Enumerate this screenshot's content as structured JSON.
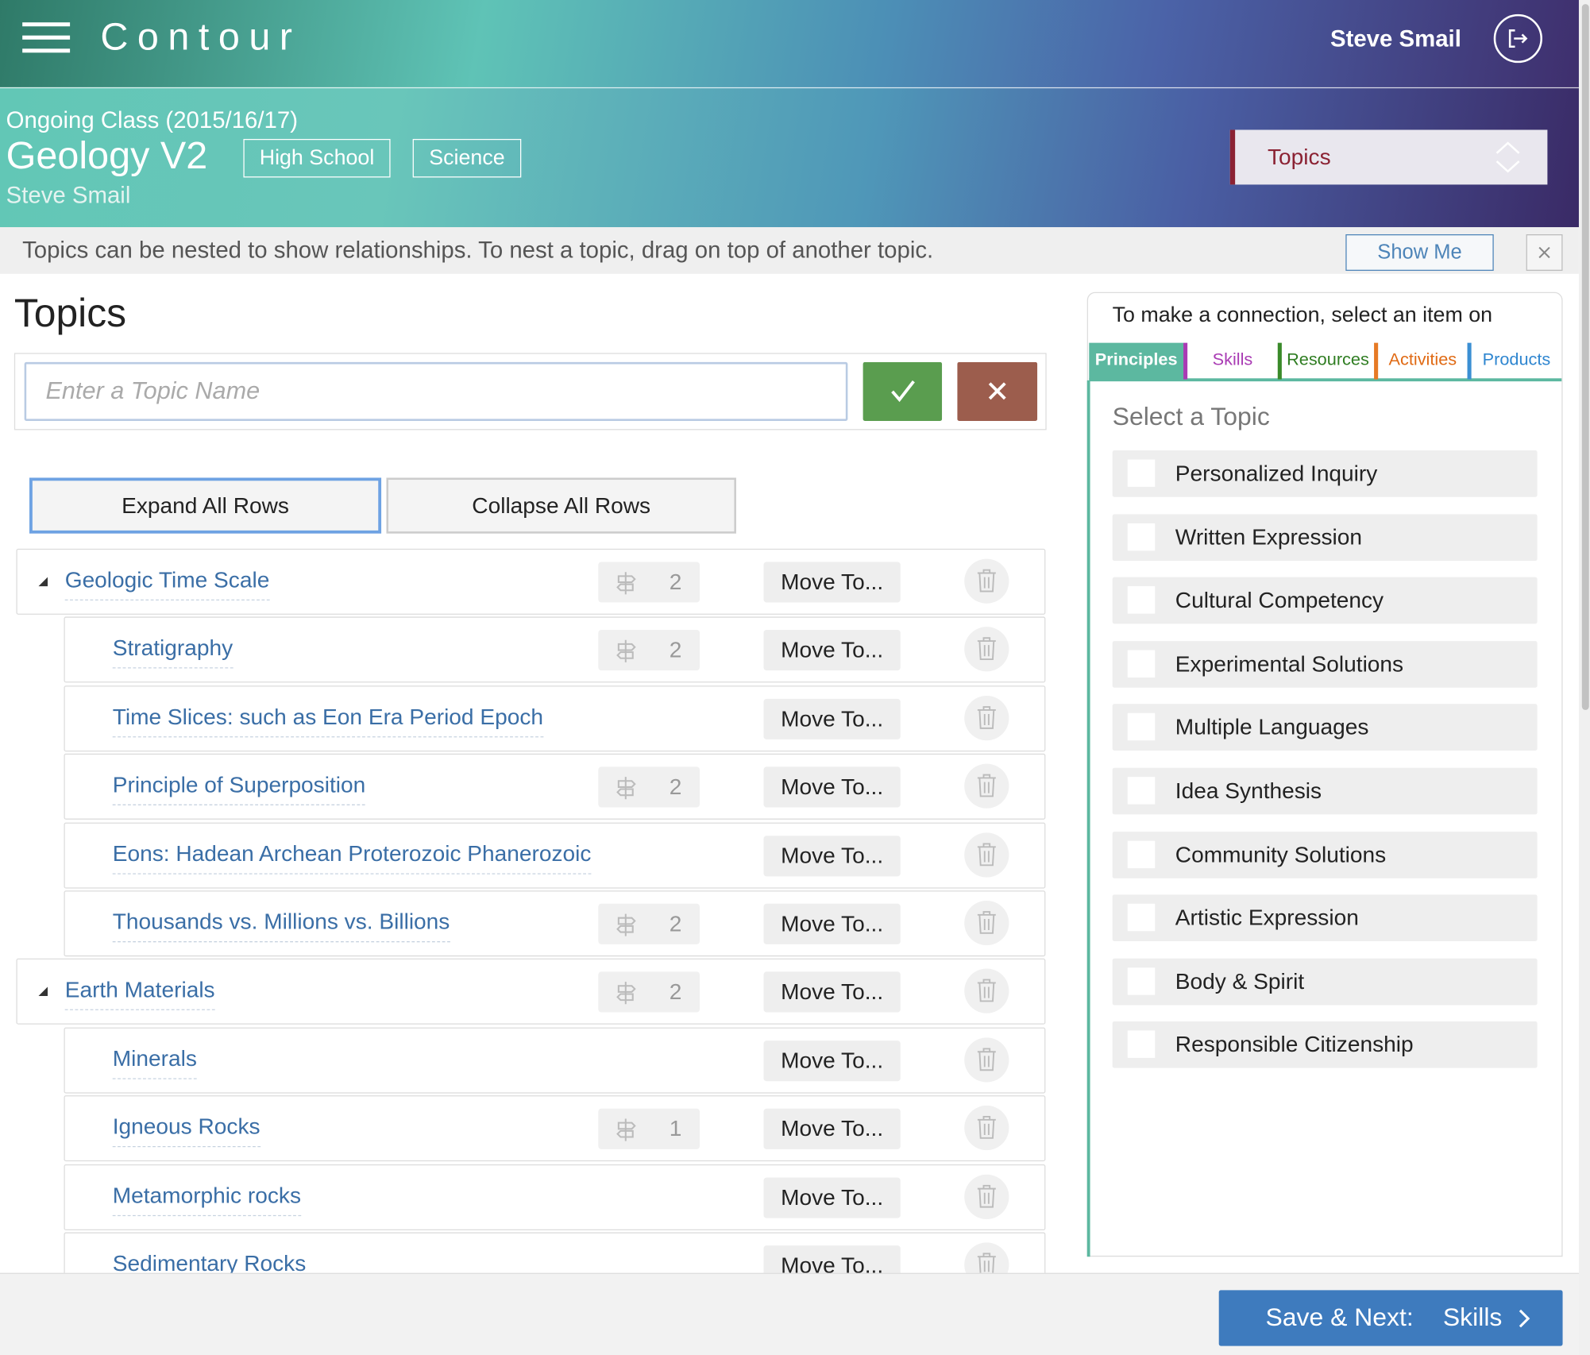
{
  "header": {
    "app_name": "Contour",
    "user_name": "Steve Smail"
  },
  "class_info": {
    "term": "Ongoing Class (2015/16/17)",
    "title": "Geology V2",
    "tags": [
      "High School",
      "Science"
    ],
    "teacher": "Steve Smail"
  },
  "section_selector": {
    "value": "Topics"
  },
  "hint": {
    "text": "Topics can be nested to show relationships. To nest a topic, drag on top of another topic.",
    "button": "Show Me"
  },
  "topics_panel": {
    "title": "Topics",
    "input_placeholder": "Enter a Topic Name",
    "expand_button": "Expand All Rows",
    "collapse_button": "Collapse All Rows",
    "move_button": "Move To...",
    "rows": [
      {
        "name": "Geologic Time Scale",
        "connections": 2,
        "children": [
          {
            "name": "Stratigraphy",
            "connections": 2
          },
          {
            "name": "Time Slices: such as Eon Era Period Epoch"
          },
          {
            "name": "Principle of Superposition",
            "connections": 2
          },
          {
            "name": "Eons: Hadean Archean Proterozoic Phanerozoic"
          },
          {
            "name": "Thousands vs. Millions vs. Billions",
            "connections": 2
          }
        ]
      },
      {
        "name": "Earth Materials",
        "connections": 2,
        "children": [
          {
            "name": "Minerals"
          },
          {
            "name": "Igneous Rocks",
            "connections": 1
          },
          {
            "name": "Metamorphic rocks"
          },
          {
            "name": "Sedimentary Rocks"
          }
        ]
      }
    ]
  },
  "connections_panel": {
    "instruction": "To make a connection, select an item on",
    "tabs": [
      "Principles",
      "Skills",
      "Resources",
      "Activities",
      "Products"
    ],
    "subtitle": "Select a Topic",
    "items": [
      "Personalized Inquiry",
      "Written Expression",
      "Cultural Competency",
      "Experimental Solutions",
      "Multiple Languages",
      "Idea Synthesis",
      "Community Solutions",
      "Artistic Expression",
      "Body & Spirit",
      "Responsible Citizenship"
    ]
  },
  "footer": {
    "button_label": "Save & Next:",
    "next_section": "Skills"
  }
}
